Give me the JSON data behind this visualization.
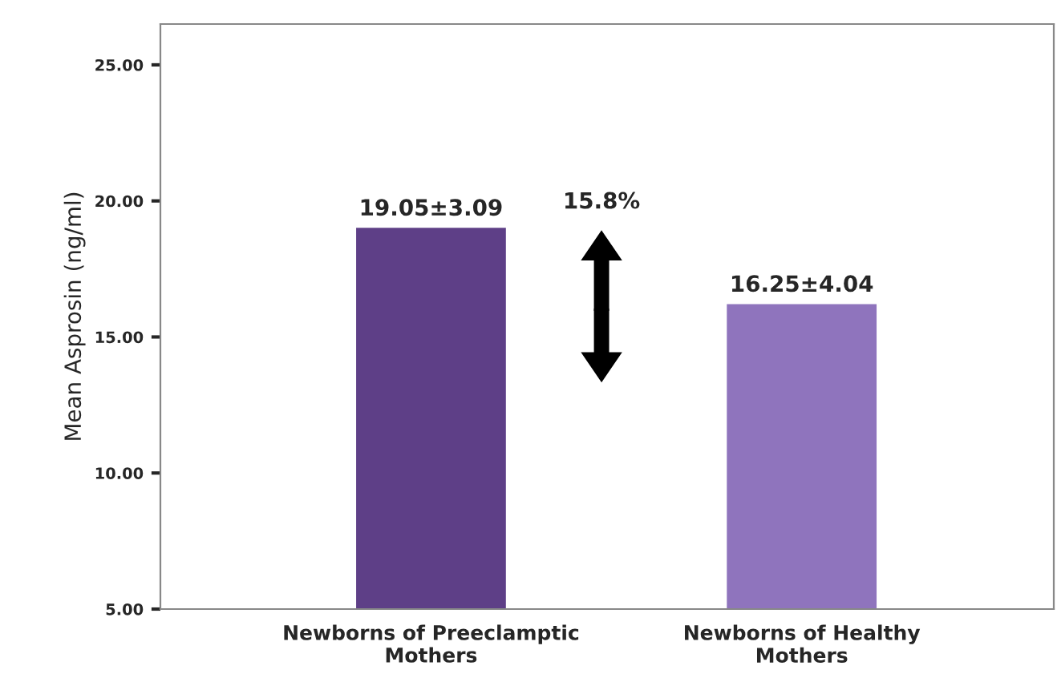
{
  "chart_data": {
    "type": "bar",
    "ylabel": "Mean Asprosin (ng/ml)",
    "categories": [
      "Newborns of Preeclamptic\nMothers",
      "Newborns of Healthy\nMothers"
    ],
    "values": [
      19.05,
      16.25
    ],
    "value_labels": [
      "19.05±3.09",
      "16.25±4.04"
    ],
    "colors": [
      "#5e3f87",
      "#8f74bd"
    ],
    "ylim": [
      5,
      26.5
    ],
    "yticks": [
      {
        "value": 5,
        "label": "5.00"
      },
      {
        "value": 10,
        "label": "10.00"
      },
      {
        "value": 15,
        "label": "15.00"
      },
      {
        "value": 20,
        "label": "20.00"
      },
      {
        "value": 25,
        "label": "25.00"
      }
    ],
    "annotations": [
      "15.8%"
    ],
    "grid": false
  }
}
